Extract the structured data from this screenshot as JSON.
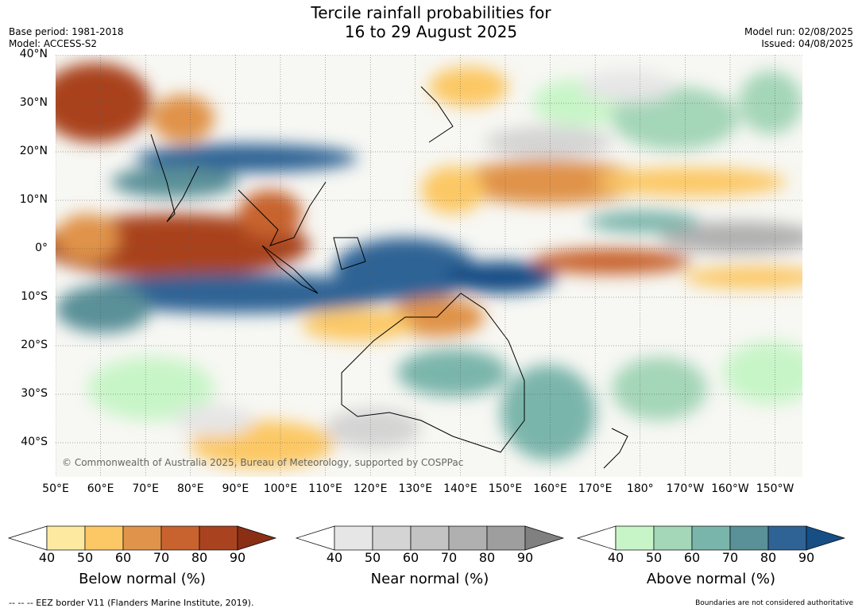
{
  "title_line1": "Tercile rainfall probabilities for",
  "title_line2": "16 to 29 August 2025",
  "meta_left": [
    "Base period: 1981-2018",
    "Model: ACCESS-S2"
  ],
  "meta_right": [
    "Model run: 02/08/2025",
    "Issued: 04/08/2025"
  ],
  "copyright": "© Commonwealth of Australia 2025, Bureau of Meteorology, supported by COSPPac",
  "lat_labels": [
    "40°N",
    "30°N",
    "20°N",
    "10°N",
    "0°",
    "10°S",
    "20°S",
    "30°S",
    "40°S"
  ],
  "lon_labels": [
    "50°E",
    "60°E",
    "70°E",
    "80°E",
    "90°E",
    "100°E",
    "110°E",
    "120°E",
    "130°E",
    "140°E",
    "150°E",
    "160°E",
    "170°E",
    "180°",
    "170°W",
    "160°W",
    "150°W"
  ],
  "colorbars": [
    {
      "title": "Below normal (%)",
      "ticks": [
        "40",
        "50",
        "60",
        "70",
        "80",
        "90"
      ],
      "colors": [
        "#ffffff",
        "#fdeaa0",
        "#fcc865",
        "#e0934a",
        "#c8632f",
        "#a9431f",
        "#8a2f14"
      ]
    },
    {
      "title": "Near normal (%)",
      "ticks": [
        "40",
        "50",
        "60",
        "70",
        "80",
        "90"
      ],
      "colors": [
        "#ffffff",
        "#e6e6e6",
        "#d4d4d4",
        "#c3c3c3",
        "#b0b0b0",
        "#9e9e9e",
        "#808080"
      ]
    },
    {
      "title": "Above normal (%)",
      "ticks": [
        "40",
        "50",
        "60",
        "70",
        "80",
        "90"
      ],
      "colors": [
        "#ffffff",
        "#c8f5c8",
        "#a4d6b8",
        "#7ab5ab",
        "#5a9098",
        "#2f6395",
        "#164e85"
      ]
    }
  ],
  "footer_left": "--  --  -- EEZ border V11 (Flanders Marine Institute, 2019).",
  "footer_right": "Boundaries are not considered authoritative"
}
